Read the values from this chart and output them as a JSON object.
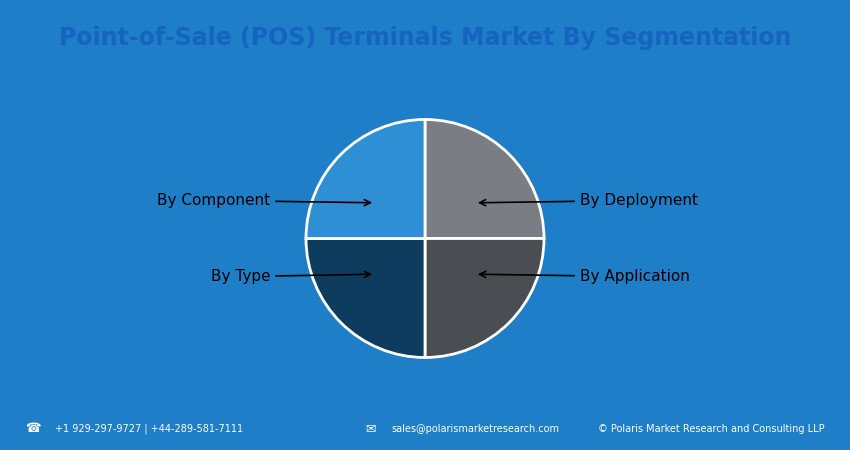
{
  "title": "Point-of-Sale (POS) Terminals Market By Segmentation",
  "title_text_color": "#1565C0",
  "title_bg_color": "#FFFFFF",
  "main_bg_color": "#FFFFFF",
  "frame_color": "#1E7EC8",
  "footer_bg_color": "#1E7EC8",
  "footer_text_color": "#FFFFFF",
  "footer_phone_icon": "☎",
  "footer_email_icon": "✉",
  "footer_phone": "+1 929-297-9727 | +44-289-581-7111",
  "footer_email": "sales@polarismarketresearch.com",
  "footer_copy": "© Polaris Market Research and Consulting LLP",
  "sizes": [
    25,
    25,
    25,
    25
  ],
  "colors": [
    "#7A7E84",
    "#2E8FD5",
    "#4A4D52",
    "#0D3C5E"
  ],
  "startangle": 90,
  "edgecolor": "#FFFFFF",
  "edgewidth": 2.0,
  "labels": [
    "By Component",
    "By Deployment",
    "By Type",
    "By Application"
  ],
  "annotation_fontsize": 11,
  "annotation_color": "#000000",
  "title_fontsize": 17,
  "footer_fontsize": 7
}
